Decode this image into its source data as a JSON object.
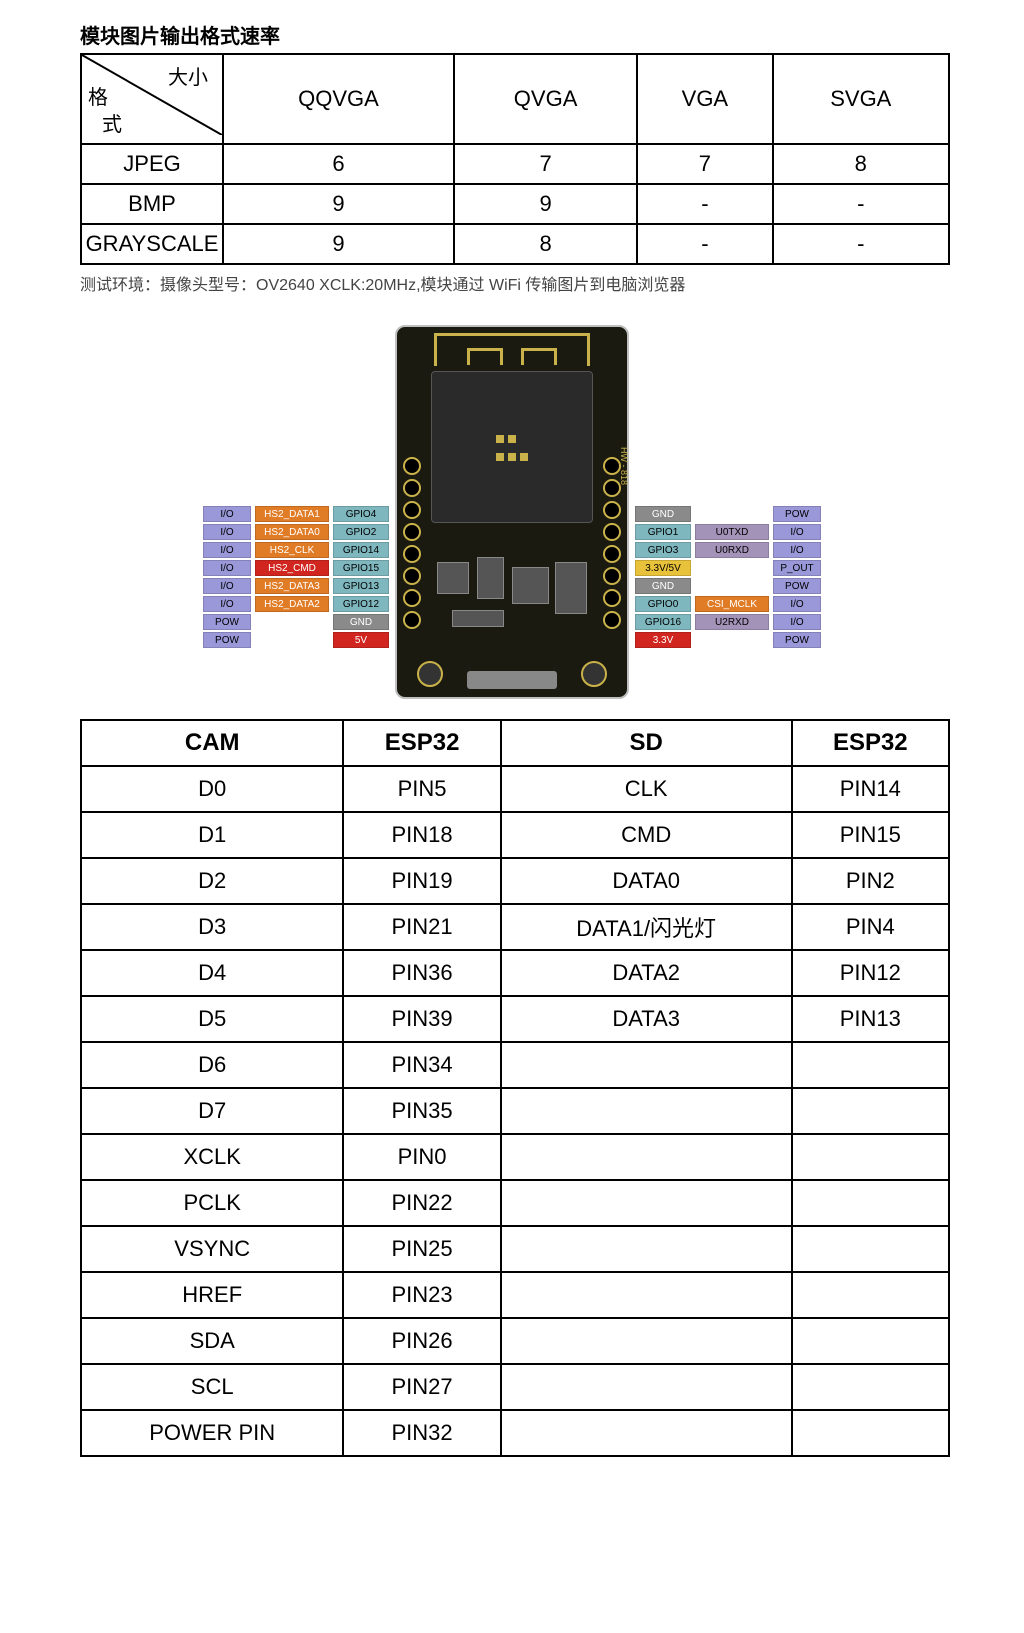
{
  "title": "模块图片输出格式速率",
  "rate_table": {
    "diag_top": "大小",
    "diag_left1": "格",
    "diag_left2": "式",
    "columns": [
      "QQVGA",
      "QVGA",
      "VGA",
      "SVGA"
    ],
    "rows": [
      {
        "label": "JPEG",
        "cells": [
          "6",
          "7",
          "7",
          "8"
        ]
      },
      {
        "label": "BMP",
        "cells": [
          "9",
          "9",
          "-",
          "-"
        ]
      },
      {
        "label": "GRAYSCALE",
        "cells": [
          "9",
          "8",
          "-",
          "-"
        ]
      }
    ]
  },
  "footnote": "测试环境：摄像头型号：OV2640  XCLK:20MHz,模块通过 WiFi 传输图片到电脑浏览器",
  "colors": {
    "violet": "#9a98d8",
    "orange": "#e07b26",
    "teal": "#7fb7bf",
    "grey": "#8a8a8a",
    "red": "#d1261f",
    "yellow": "#e8c23a",
    "purple": "#a493b8",
    "white": "#ffffff",
    "black": "#000000",
    "gold": "#c9b24a",
    "boardbg": "#1a1a10"
  },
  "pins_left": [
    {
      "io": "I/O",
      "mid": "HS2_DATA1",
      "gpio": "GPIO4",
      "io_c": "violet",
      "mid_c": "orange",
      "gpio_c": "teal"
    },
    {
      "io": "I/O",
      "mid": "HS2_DATA0",
      "gpio": "GPIO2",
      "io_c": "violet",
      "mid_c": "orange",
      "gpio_c": "teal"
    },
    {
      "io": "I/O",
      "mid": "HS2_CLK",
      "gpio": "GPIO14",
      "io_c": "violet",
      "mid_c": "orange",
      "gpio_c": "teal"
    },
    {
      "io": "I/O",
      "mid": "HS2_CMD",
      "gpio": "GPIO15",
      "io_c": "violet",
      "mid_c": "red",
      "gpio_c": "teal"
    },
    {
      "io": "I/O",
      "mid": "HS2_DATA3",
      "gpio": "GPIO13",
      "io_c": "violet",
      "mid_c": "orange",
      "gpio_c": "teal"
    },
    {
      "io": "I/O",
      "mid": "HS2_DATA2",
      "gpio": "GPIO12",
      "io_c": "violet",
      "mid_c": "orange",
      "gpio_c": "teal"
    },
    {
      "io": "POW",
      "mid": "",
      "gpio": "GND",
      "io_c": "violet",
      "mid_c": "",
      "gpio_c": "grey"
    },
    {
      "io": "POW",
      "mid": "",
      "gpio": "5V",
      "io_c": "violet",
      "mid_c": "",
      "gpio_c": "red"
    }
  ],
  "pins_right": [
    {
      "gpio": "GND",
      "mid": "",
      "io": "POW",
      "io_c": "violet",
      "mid_c": "",
      "gpio_c": "grey"
    },
    {
      "gpio": "GPIO1",
      "mid": "U0TXD",
      "io": "I/O",
      "io_c": "violet",
      "mid_c": "purple",
      "gpio_c": "teal"
    },
    {
      "gpio": "GPIO3",
      "mid": "U0RXD",
      "io": "I/O",
      "io_c": "violet",
      "mid_c": "purple",
      "gpio_c": "teal"
    },
    {
      "gpio": "3.3V/5V",
      "mid": "",
      "io": "P_OUT",
      "io_c": "violet",
      "mid_c": "",
      "gpio_c": "yellow"
    },
    {
      "gpio": "GND",
      "mid": "",
      "io": "POW",
      "io_c": "violet",
      "mid_c": "",
      "gpio_c": "grey"
    },
    {
      "gpio": "GPIO0",
      "mid": "CSI_MCLK",
      "io": "I/O",
      "io_c": "violet",
      "mid_c": "orange",
      "gpio_c": "teal"
    },
    {
      "gpio": "GPIO16",
      "mid": "U2RXD",
      "io": "I/O",
      "io_c": "violet",
      "mid_c": "purple",
      "gpio_c": "teal"
    },
    {
      "gpio": "3.3V",
      "mid": "",
      "io": "POW",
      "io_c": "violet",
      "mid_c": "",
      "gpio_c": "red"
    }
  ],
  "board_side_label": "HW - 818",
  "map_table": {
    "columns": [
      "CAM",
      "ESP32",
      "SD",
      "ESP32"
    ],
    "rows": [
      [
        "D0",
        "PIN5",
        "CLK",
        "PIN14"
      ],
      [
        "D1",
        "PIN18",
        "CMD",
        "PIN15"
      ],
      [
        "D2",
        "PIN19",
        "DATA0",
        "PIN2"
      ],
      [
        "D3",
        "PIN21",
        "DATA1/闪光灯",
        "PIN4"
      ],
      [
        "D4",
        "PIN36",
        "DATA2",
        "PIN12"
      ],
      [
        "D5",
        "PIN39",
        "DATA3",
        "PIN13"
      ],
      [
        "D6",
        "PIN34",
        "",
        ""
      ],
      [
        "D7",
        "PIN35",
        "",
        ""
      ],
      [
        "XCLK",
        "PIN0",
        "",
        ""
      ],
      [
        "PCLK",
        "PIN22",
        "",
        ""
      ],
      [
        "VSYNC",
        "PIN25",
        "",
        ""
      ],
      [
        "HREF",
        "PIN23",
        "",
        ""
      ],
      [
        "SDA",
        "PIN26",
        "",
        ""
      ],
      [
        "SCL",
        "PIN27",
        "",
        ""
      ],
      [
        "POWER PIN",
        "PIN32",
        "",
        ""
      ]
    ]
  }
}
